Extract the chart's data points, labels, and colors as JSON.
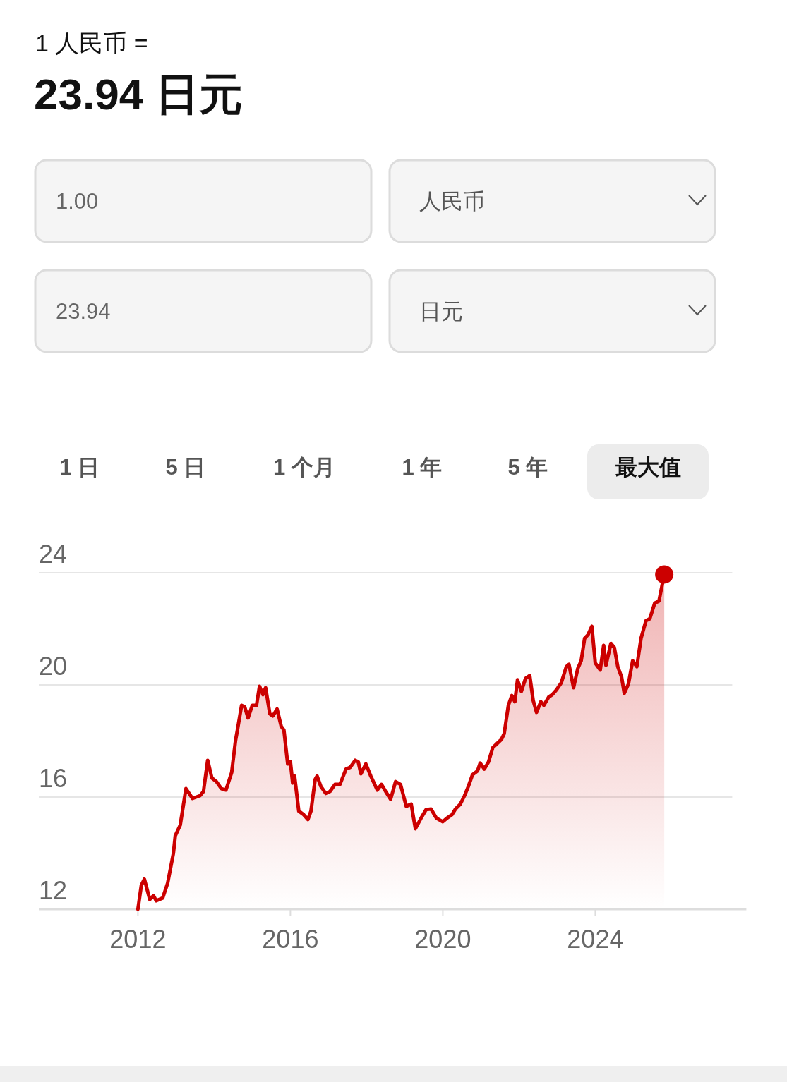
{
  "chart_data": {
    "type": "area",
    "title": "1 人民币 =",
    "subtitle": "23.94 日元",
    "annotations": [
      "1.00",
      "人民币",
      "23.94",
      "日元",
      "1 日",
      "5 日",
      "1 个月",
      "1 年",
      "5 年",
      "最大值"
    ],
    "x": [
      2012.0,
      2012.09,
      2012.17,
      2012.31,
      2012.41,
      2012.48,
      2012.65,
      2012.78,
      2012.93,
      2012.98,
      2013.11,
      2013.26,
      2013.43,
      2013.63,
      2013.72,
      2013.83,
      2013.94,
      2014.06,
      2014.19,
      2014.31,
      2014.46,
      2014.56,
      2014.61,
      2014.72,
      2014.8,
      2014.89,
      2015.0,
      2015.11,
      2015.19,
      2015.28,
      2015.35,
      2015.46,
      2015.54,
      2015.65,
      2015.76,
      2015.83,
      2015.93,
      2016.0,
      2016.06,
      2016.11,
      2016.22,
      2016.35,
      2016.46,
      2016.54,
      2016.65,
      2016.7,
      2016.8,
      2016.93,
      2017.04,
      2017.17,
      2017.3,
      2017.46,
      2017.57,
      2017.7,
      2017.78,
      2017.85,
      2017.98,
      2018.11,
      2018.28,
      2018.39,
      2018.5,
      2018.63,
      2018.76,
      2018.89,
      2019.04,
      2019.17,
      2019.28,
      2019.43,
      2019.56,
      2019.69,
      2019.83,
      2020.0,
      2020.11,
      2020.24,
      2020.33,
      2020.46,
      2020.57,
      2020.67,
      2020.78,
      2020.91,
      2020.98,
      2021.09,
      2021.2,
      2021.31,
      2021.41,
      2021.54,
      2021.61,
      2021.72,
      2021.81,
      2021.89,
      2021.96,
      2022.06,
      2022.17,
      2022.28,
      2022.37,
      2022.46,
      2022.57,
      2022.65,
      2022.78,
      2022.87,
      2022.98,
      2023.11,
      2023.24,
      2023.31,
      2023.43,
      2023.54,
      2023.63,
      2023.72,
      2023.81,
      2023.91,
      2024.0,
      2024.13,
      2024.22,
      2024.28,
      2024.41,
      2024.5,
      2024.59,
      2024.69,
      2024.76,
      2024.87,
      2024.98,
      2025.09,
      2025.2,
      2025.33,
      2025.43,
      2025.56,
      2025.67,
      2025.81
    ],
    "series": [
      {
        "color": "#cc0000",
        "values": [
          12.0,
          12.86,
          13.07,
          12.35,
          12.48,
          12.3,
          12.4,
          12.93,
          13.99,
          14.62,
          15.0,
          16.3,
          15.95,
          16.05,
          16.2,
          17.31,
          16.68,
          16.55,
          16.3,
          16.25,
          16.88,
          18.01,
          18.39,
          19.27,
          19.22,
          18.82,
          19.27,
          19.27,
          19.95,
          19.65,
          19.9,
          18.97,
          18.89,
          19.14,
          18.52,
          18.39,
          17.18,
          17.26,
          16.5,
          16.75,
          15.5,
          15.37,
          15.2,
          15.5,
          16.63,
          16.75,
          16.38,
          16.13,
          16.2,
          16.45,
          16.45,
          17.0,
          17.06,
          17.31,
          17.26,
          16.83,
          17.18,
          16.75,
          16.25,
          16.45,
          16.2,
          15.92,
          16.55,
          16.45,
          15.67,
          15.75,
          14.87,
          15.25,
          15.55,
          15.57,
          15.25,
          15.12,
          15.25,
          15.37,
          15.57,
          15.75,
          16.05,
          16.38,
          16.8,
          16.93,
          17.21,
          17.0,
          17.26,
          17.76,
          17.89,
          18.06,
          18.26,
          19.27,
          19.62,
          19.4,
          20.18,
          19.77,
          20.23,
          20.33,
          19.45,
          19.02,
          19.4,
          19.27,
          19.57,
          19.65,
          19.82,
          20.08,
          20.65,
          20.73,
          19.9,
          20.58,
          20.86,
          21.66,
          21.79,
          22.09,
          20.78,
          20.53,
          21.41,
          20.7,
          21.48,
          21.33,
          20.65,
          20.28,
          19.7,
          20.03,
          20.86,
          20.65,
          21.66,
          22.29,
          22.36,
          22.92,
          22.99,
          23.94
        ]
      }
    ],
    "xlim": [
      2009.4,
      2028
    ],
    "xticks": [
      2012,
      2016,
      2020,
      2024
    ],
    "ylim": [
      12,
      24
    ],
    "yticks": [
      12,
      16,
      20,
      24
    ],
    "grid": "y"
  }
}
